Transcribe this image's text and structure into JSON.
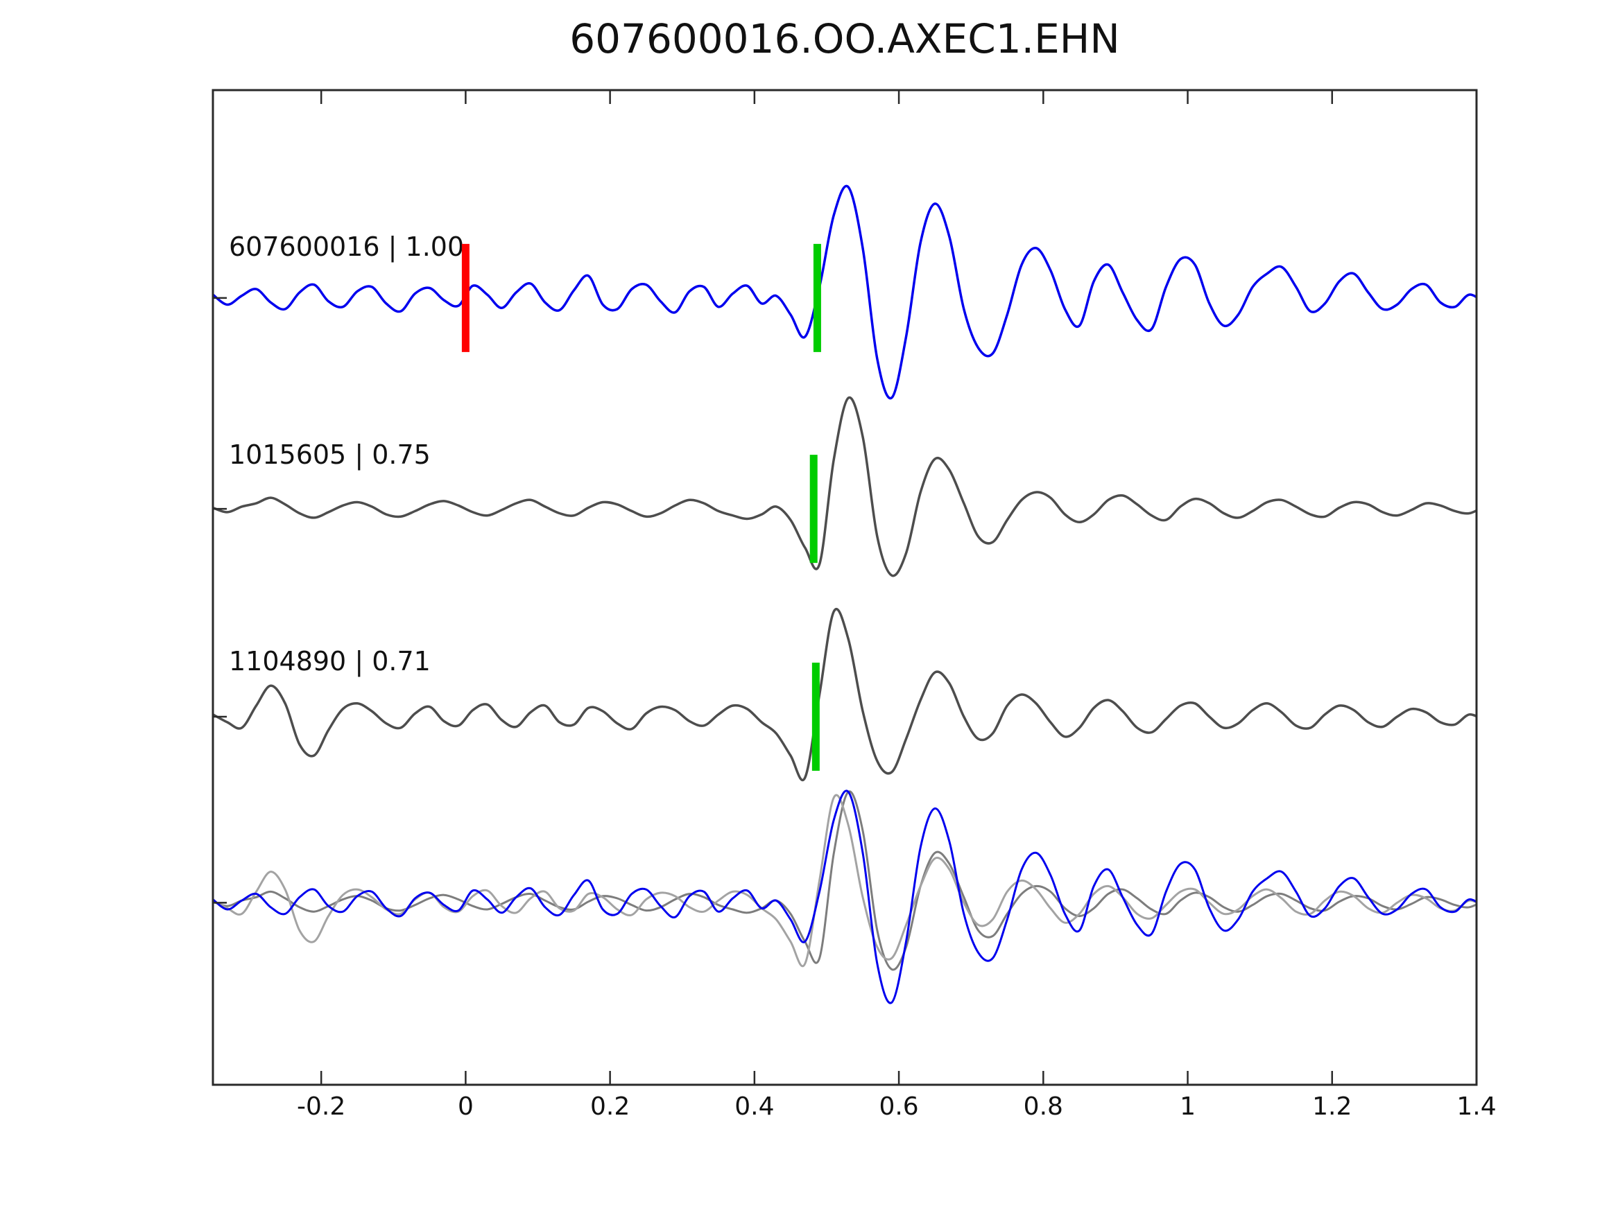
{
  "title": "607600016.OO.AXEC1.EHN",
  "colors": {
    "template_blue": "#0000ee",
    "detection_gray": "#4d4d4d",
    "overlay_gray_1": "#7d7d7d",
    "overlay_gray_2": "#a3a3a3",
    "pick_green": "#00cc00",
    "origin_red": "#ff0000",
    "axis": "#2a2a2a",
    "text": "#111111"
  },
  "chart_data": {
    "type": "line",
    "title": "607600016.OO.AXEC1.EHN",
    "xlim": [
      -0.35,
      1.4
    ],
    "xticks": [
      -0.2,
      0,
      0.2,
      0.4,
      0.6,
      0.8,
      1,
      1.2,
      1.4
    ],
    "xtick_labels": [
      "-0.2",
      "0",
      "0.2",
      "0.4",
      "0.6",
      "0.8",
      "1",
      "1.2",
      "1.4"
    ],
    "grid": false,
    "legend": false,
    "x0": -0.35,
    "dx": 0.02,
    "n": 89,
    "series": [
      {
        "id": "607600016",
        "cc": 1.0,
        "label": "607600016 | 1.00",
        "color": "#0000ee",
        "row": 0,
        "values": [
          0.03,
          -0.06,
          0.02,
          0.08,
          -0.04,
          -0.1,
          0.05,
          0.12,
          -0.03,
          -0.08,
          0.06,
          0.1,
          -0.05,
          -0.12,
          0.04,
          0.09,
          -0.02,
          -0.07,
          0.11,
          0.03,
          -0.09,
          0.05,
          0.13,
          -0.04,
          -0.11,
          0.07,
          0.2,
          -0.06,
          -0.1,
          0.08,
          0.12,
          -0.03,
          -0.13,
          0.06,
          0.1,
          -0.08,
          0.04,
          0.11,
          -0.05,
          0.02,
          -0.15,
          -0.35,
          0.1,
          0.75,
          1.0,
          0.45,
          -0.55,
          -0.9,
          -0.35,
          0.5,
          0.85,
          0.55,
          -0.1,
          -0.45,
          -0.5,
          -0.15,
          0.3,
          0.45,
          0.25,
          -0.1,
          -0.25,
          0.15,
          0.3,
          0.05,
          -0.2,
          -0.28,
          0.1,
          0.35,
          0.3,
          -0.05,
          -0.25,
          -0.15,
          0.1,
          0.22,
          0.28,
          0.1,
          -0.12,
          -0.05,
          0.15,
          0.22,
          0.05,
          -0.1,
          -0.06,
          0.08,
          0.12,
          -0.04,
          -0.08,
          0.03,
          -0.04
        ]
      },
      {
        "id": "1015605",
        "cc": 0.75,
        "label": "1015605 | 0.75",
        "color": "#4d4d4d",
        "row": 1,
        "values": [
          0.01,
          -0.03,
          0.02,
          0.05,
          0.1,
          0.04,
          -0.04,
          -0.08,
          -0.03,
          0.03,
          0.06,
          0.02,
          -0.05,
          -0.07,
          -0.02,
          0.04,
          0.07,
          0.03,
          -0.03,
          -0.06,
          -0.01,
          0.05,
          0.08,
          0.02,
          -0.04,
          -0.06,
          0.01,
          0.06,
          0.04,
          -0.02,
          -0.07,
          -0.04,
          0.03,
          0.08,
          0.05,
          -0.02,
          -0.06,
          -0.09,
          -0.05,
          0.02,
          -0.1,
          -0.35,
          -0.5,
          0.45,
          1.0,
          0.65,
          -0.25,
          -0.6,
          -0.4,
          0.15,
          0.45,
          0.35,
          0.05,
          -0.25,
          -0.3,
          -0.1,
          0.08,
          0.15,
          0.1,
          -0.05,
          -0.12,
          -0.05,
          0.08,
          0.12,
          0.04,
          -0.06,
          -0.1,
          0.02,
          0.09,
          0.05,
          -0.04,
          -0.08,
          -0.02,
          0.06,
          0.08,
          0.02,
          -0.05,
          -0.07,
          0.01,
          0.06,
          0.04,
          -0.03,
          -0.06,
          -0.01,
          0.05,
          0.03,
          -0.02,
          -0.04,
          0.02
        ]
      },
      {
        "id": "1104890",
        "cc": 0.71,
        "label": "1104890 | 0.71",
        "color": "#4d4d4d",
        "row": 2,
        "values": [
          0.02,
          -0.05,
          -0.1,
          0.1,
          0.28,
          0.12,
          -0.25,
          -0.35,
          -0.12,
          0.07,
          0.12,
          0.05,
          -0.06,
          -0.1,
          0.03,
          0.09,
          -0.04,
          -0.08,
          0.06,
          0.11,
          -0.03,
          -0.09,
          0.04,
          0.1,
          -0.05,
          -0.07,
          0.08,
          0.05,
          -0.06,
          -0.11,
          0.03,
          0.09,
          0.06,
          -0.04,
          -0.08,
          0.02,
          0.1,
          0.07,
          -0.05,
          -0.15,
          -0.35,
          -0.55,
          0.2,
          0.95,
          0.7,
          0.05,
          -0.4,
          -0.5,
          -0.2,
          0.15,
          0.4,
          0.3,
          0.0,
          -0.2,
          -0.15,
          0.1,
          0.2,
          0.12,
          -0.05,
          -0.18,
          -0.1,
          0.08,
          0.15,
          0.05,
          -0.1,
          -0.14,
          -0.02,
          0.1,
          0.12,
          0.0,
          -0.1,
          -0.06,
          0.06,
          0.12,
          0.04,
          -0.08,
          -0.1,
          0.02,
          0.1,
          0.06,
          -0.05,
          -0.09,
          0.0,
          0.07,
          0.04,
          -0.05,
          -0.07,
          0.02,
          -0.03
        ]
      }
    ],
    "overlay": {
      "row": 3,
      "layers": [
        {
          "series": 1,
          "color": "#7d7d7d"
        },
        {
          "series": 2,
          "color": "#a3a3a3"
        },
        {
          "series": 0,
          "color": "#0000ee"
        }
      ]
    },
    "markers": {
      "origin": {
        "series": 0,
        "x": 0.0,
        "color": "#ff0000"
      },
      "picks": {
        "color": "#00cc00",
        "items": [
          {
            "series": 0,
            "x": 0.487
          },
          {
            "series": 1,
            "x": 0.482
          },
          {
            "series": 2,
            "x": 0.485
          }
        ]
      }
    }
  }
}
